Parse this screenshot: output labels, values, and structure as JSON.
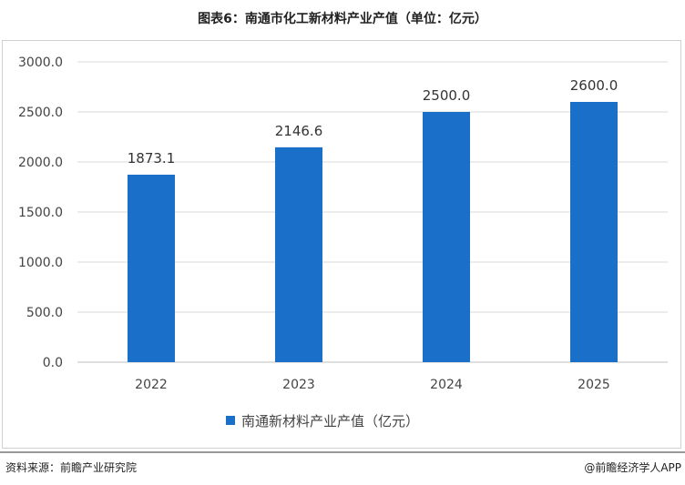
{
  "title": "图表6：南通市化工新材料产业产值（单位：亿元）",
  "source": "资料来源：前瞻产业研究院",
  "credit": "@前瞻经济学人APP",
  "colors": {
    "bar": "#1a70c8",
    "grid": "#d9d9d9",
    "axis": "#bfbfbf"
  },
  "chart_data": {
    "type": "bar",
    "title": "",
    "xlabel": "",
    "ylabel": "",
    "categories": [
      "2022",
      "2023",
      "2024",
      "2025"
    ],
    "series": [
      {
        "name": "南通新材料产业产值（亿元）",
        "values": [
          1873.1,
          2146.6,
          2500.0,
          2600.0
        ]
      }
    ],
    "data_labels": [
      "1873.1",
      "2146.6",
      "2500.0",
      "2600.0"
    ],
    "ylim": [
      0,
      3000
    ],
    "yticks": [
      0,
      500,
      1000,
      1500,
      2000,
      2500,
      3000
    ],
    "ytick_labels": [
      "0.0",
      "500.0",
      "1000.0",
      "1500.0",
      "2000.0",
      "2500.0",
      "3000.0"
    ],
    "grid": true,
    "legend": "bottom"
  }
}
